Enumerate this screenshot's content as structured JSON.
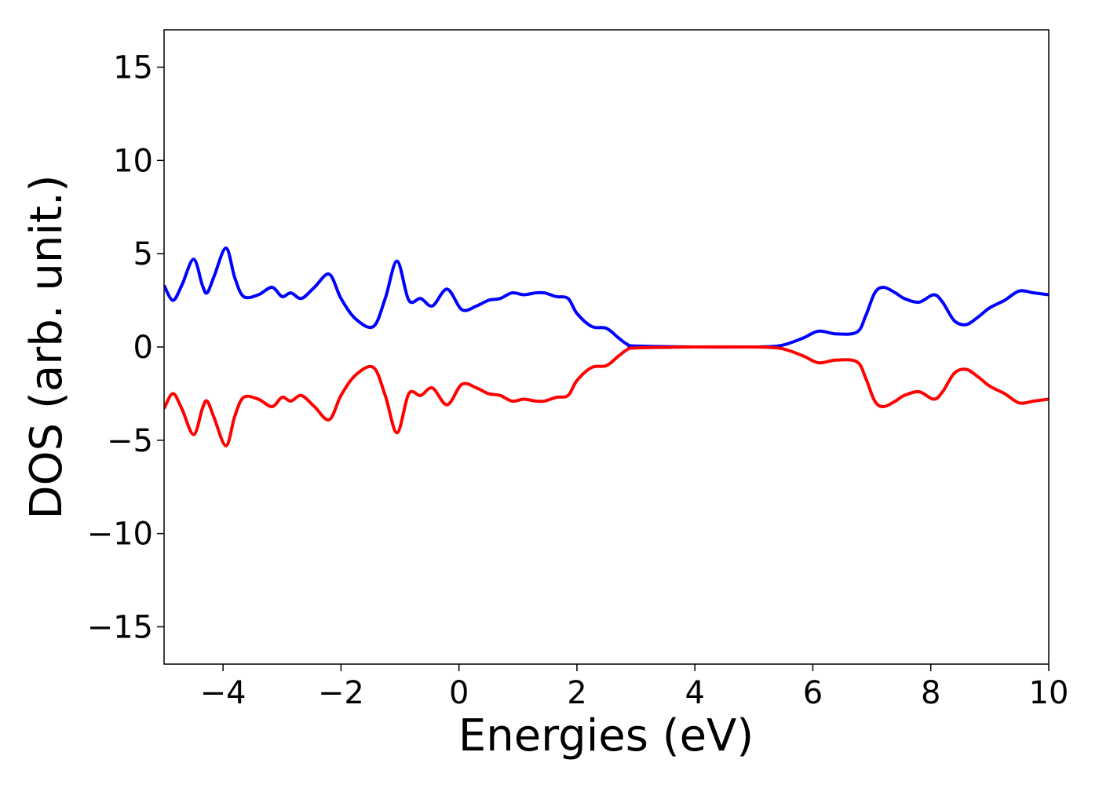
{
  "chart_data": {
    "type": "line",
    "title": "",
    "xlabel": "Energies (eV)",
    "ylabel": "DOS (arb. unit.)",
    "xlim": [
      -5,
      10
    ],
    "ylim": [
      -17,
      17
    ],
    "grid": false,
    "x_ticks": [
      -4,
      -2,
      0,
      2,
      4,
      6,
      8,
      10
    ],
    "x_tick_labels": [
      "−4",
      "−2",
      "0",
      "2",
      "4",
      "6",
      "8",
      "10"
    ],
    "y_ticks": [
      15,
      10,
      5,
      0,
      -5,
      -10,
      -15
    ],
    "y_tick_labels": [
      "15",
      "10",
      "5",
      "0",
      "−5",
      "−10",
      "−15"
    ],
    "series": [
      {
        "color": "#0000ff",
        "x": [
          -5,
          -4.85,
          -4.7,
          -4.5,
          -4.35,
          -4.27,
          -4.15,
          -3.95,
          -3.8,
          -3.65,
          -3.4,
          -3.17,
          -3.0,
          -2.85,
          -2.67,
          -2.45,
          -2.2,
          -2.0,
          -1.75,
          -1.45,
          -1.25,
          -1.05,
          -0.85,
          -0.65,
          -0.45,
          -0.2,
          0.05,
          0.3,
          0.5,
          0.7,
          0.9,
          1.1,
          1.3,
          1.45,
          1.65,
          1.85,
          2.0,
          2.25,
          2.5,
          2.7,
          2.85,
          3.0,
          4.0,
          5.0,
          5.4,
          5.6,
          5.85,
          6.1,
          6.4,
          6.75,
          6.9,
          7.05,
          7.2,
          7.4,
          7.55,
          7.8,
          8.05,
          8.2,
          8.4,
          8.6,
          8.8,
          9.0,
          9.25,
          9.5,
          9.75,
          10.0
        ],
        "values": [
          3.3,
          2.5,
          3.3,
          4.7,
          3.3,
          2.9,
          3.8,
          5.3,
          3.7,
          2.7,
          2.8,
          3.2,
          2.7,
          2.9,
          2.6,
          3.2,
          3.9,
          2.6,
          1.5,
          1.1,
          2.6,
          4.6,
          2.5,
          2.6,
          2.2,
          3.1,
          2.0,
          2.2,
          2.5,
          2.6,
          2.9,
          2.8,
          2.9,
          2.9,
          2.7,
          2.6,
          1.8,
          1.1,
          1.0,
          0.5,
          0.15,
          0.05,
          0.0,
          0.0,
          0.05,
          0.2,
          0.5,
          0.85,
          0.7,
          0.8,
          1.7,
          2.9,
          3.2,
          2.9,
          2.6,
          2.4,
          2.8,
          2.4,
          1.4,
          1.2,
          1.6,
          2.1,
          2.5,
          3.0,
          2.9,
          2.8
        ]
      },
      {
        "color": "#ff0000",
        "x": [
          -5,
          -4.85,
          -4.7,
          -4.5,
          -4.35,
          -4.27,
          -4.15,
          -3.95,
          -3.8,
          -3.65,
          -3.4,
          -3.17,
          -3.0,
          -2.85,
          -2.67,
          -2.45,
          -2.2,
          -2.0,
          -1.75,
          -1.45,
          -1.25,
          -1.05,
          -0.85,
          -0.65,
          -0.45,
          -0.2,
          0.05,
          0.3,
          0.5,
          0.7,
          0.9,
          1.1,
          1.3,
          1.45,
          1.65,
          1.85,
          2.0,
          2.25,
          2.5,
          2.7,
          2.85,
          3.0,
          4.0,
          5.0,
          5.4,
          5.6,
          5.85,
          6.1,
          6.4,
          6.75,
          6.9,
          7.05,
          7.2,
          7.4,
          7.55,
          7.8,
          8.05,
          8.2,
          8.4,
          8.6,
          8.8,
          9.0,
          9.25,
          9.5,
          9.75,
          10.0
        ],
        "values": [
          -3.3,
          -2.5,
          -3.3,
          -4.7,
          -3.3,
          -2.9,
          -3.8,
          -5.3,
          -3.7,
          -2.7,
          -2.8,
          -3.2,
          -2.7,
          -2.9,
          -2.6,
          -3.2,
          -3.9,
          -2.6,
          -1.5,
          -1.1,
          -2.6,
          -4.6,
          -2.5,
          -2.6,
          -2.2,
          -3.1,
          -2.0,
          -2.2,
          -2.5,
          -2.6,
          -2.9,
          -2.8,
          -2.9,
          -2.9,
          -2.7,
          -2.6,
          -1.8,
          -1.1,
          -1.0,
          -0.5,
          -0.15,
          -0.05,
          0.0,
          0.0,
          -0.05,
          -0.2,
          -0.5,
          -0.85,
          -0.7,
          -0.8,
          -1.7,
          -2.9,
          -3.2,
          -2.9,
          -2.6,
          -2.4,
          -2.8,
          -2.4,
          -1.4,
          -1.2,
          -1.6,
          -2.1,
          -2.5,
          -3.0,
          -2.9,
          -2.8
        ]
      }
    ]
  }
}
